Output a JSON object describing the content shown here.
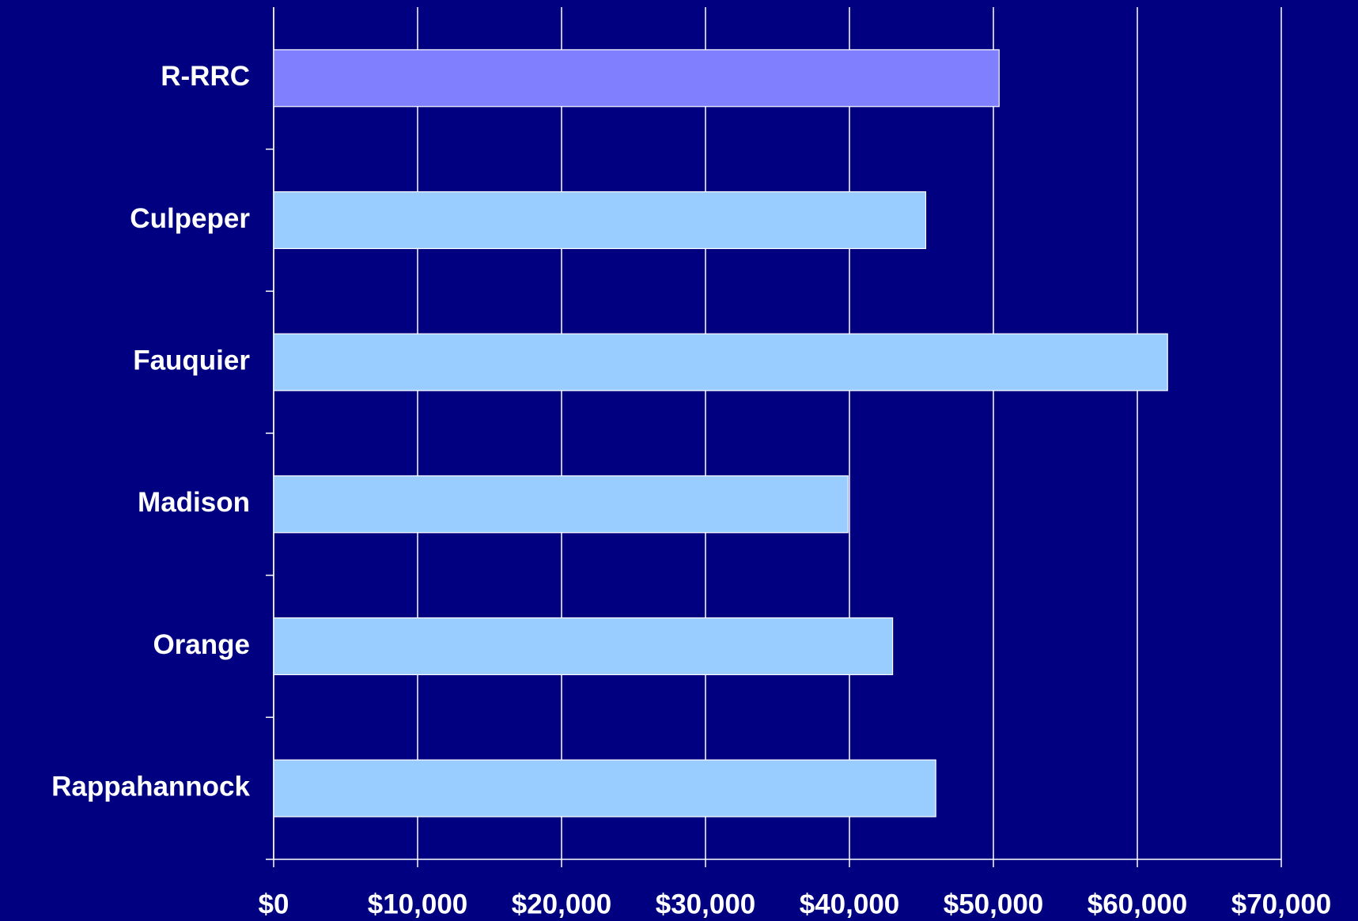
{
  "chart_data": {
    "type": "barh",
    "categories": [
      "R-RRC",
      "Culpeper",
      "Fauquier",
      "Madison",
      "Orange",
      "Rappahannock"
    ],
    "values": [
      50400,
      45300,
      62100,
      39900,
      43000,
      46000
    ],
    "colors": [
      "#8080ff",
      "#99ccff",
      "#99ccff",
      "#99ccff",
      "#99ccff",
      "#99ccff"
    ],
    "xlim": [
      0,
      70000
    ],
    "xticks": [
      {
        "value": 0,
        "label": "$0"
      },
      {
        "value": 10000,
        "label": "$10,000"
      },
      {
        "value": 20000,
        "label": "$20,000"
      },
      {
        "value": 30000,
        "label": "$30,000"
      },
      {
        "value": 40000,
        "label": "$40,000"
      },
      {
        "value": 50000,
        "label": "$50,000"
      },
      {
        "value": 60000,
        "label": "$60,000"
      },
      {
        "value": 70000,
        "label": "$70,000"
      }
    ],
    "grid": true
  }
}
